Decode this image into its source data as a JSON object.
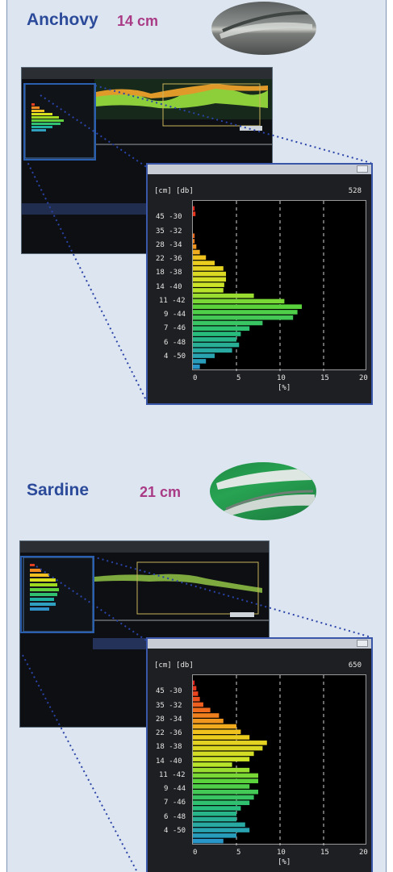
{
  "colors": {
    "panel_bg": "#dde6f0",
    "title": "#2c4a9a",
    "size": "#a93a85",
    "connector": "#2a43a8"
  },
  "sections": [
    {
      "title": "Anchovy",
      "size": "14 cm",
      "fish_icon": "anchovy-photo",
      "histogram": {
        "header_left": "[cm] [db]",
        "count": "528",
        "y_labels": [
          "45 -30",
          "35 -32",
          "28 -34",
          "22 -36",
          "18 -38",
          "14 -40",
          "11 -42",
          "9 -44",
          "7 -46",
          "6 -48",
          "4 -50"
        ],
        "x_ticks": [
          "0",
          "5",
          "10",
          "15",
          "20"
        ],
        "x_unit": "[%]"
      }
    },
    {
      "title": "Sardine",
      "size": "21 cm",
      "fish_icon": "sardine-photo",
      "histogram": {
        "header_left": "[cm] [db]",
        "count": "650",
        "y_labels": [
          "45 -30",
          "35 -32",
          "28 -34",
          "22 -36",
          "18 -38",
          "14 -40",
          "11 -42",
          "9 -44",
          "7 -46",
          "6 -48",
          "4 -50"
        ],
        "x_ticks": [
          "0",
          "5",
          "10",
          "15",
          "20"
        ],
        "x_unit": "[%]"
      }
    }
  ],
  "chart_data": [
    {
      "type": "bar",
      "orientation": "horizontal",
      "xlim": [
        0,
        20
      ],
      "values": [
        0.2,
        0.3,
        0,
        0,
        0,
        0.2,
        0.2,
        0.4,
        0.8,
        1.5,
        2.5,
        3.5,
        3.8,
        3.8,
        3.6,
        3.5,
        7,
        10.5,
        12.5,
        12,
        11.5,
        8,
        6.5,
        5.5,
        5,
        5.3,
        4.5,
        2.5,
        1.5,
        0.8
      ]
    },
    {
      "type": "bar",
      "orientation": "horizontal",
      "xlim": [
        0,
        20
      ],
      "values": [
        0.2,
        0.4,
        0.6,
        0.8,
        1.2,
        2,
        3,
        3.5,
        5,
        5.5,
        6.5,
        8.5,
        8,
        7,
        6.5,
        4.5,
        6.5,
        7.5,
        7.5,
        6.5,
        7.5,
        7,
        6.5,
        5.5,
        5,
        5,
        6,
        6.5,
        5,
        3.5
      ]
    }
  ]
}
